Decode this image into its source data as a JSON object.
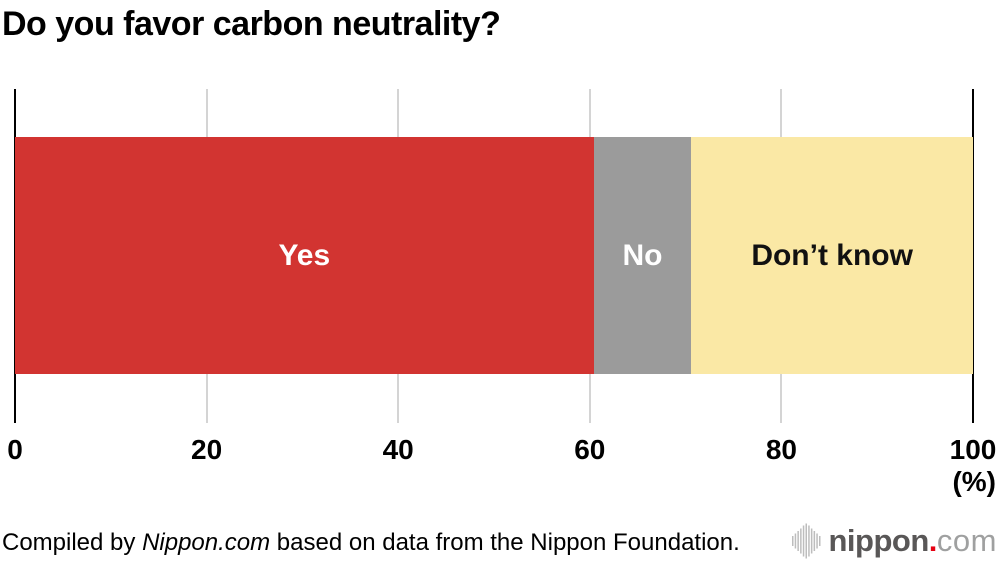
{
  "title": "Do you favor carbon neutrality?",
  "chart_data": {
    "type": "bar",
    "variant": "horizontal-stacked",
    "title": "Do you favor carbon neutrality?",
    "categories": [
      "Yes",
      "No",
      "Don’t know"
    ],
    "values": [
      60.4,
      10.2,
      29.4
    ],
    "segment_colors": [
      "#d23431",
      "#9b9b9b",
      "#fae8a5"
    ],
    "label_colors": [
      "#ffffff",
      "#ffffff",
      "#111111"
    ],
    "xlim": [
      0,
      100
    ],
    "x_tick_values": [
      0,
      20,
      40,
      60,
      80,
      100
    ],
    "x_tick_labels": [
      "0",
      "20",
      "40",
      "60",
      "80",
      "100"
    ],
    "unit_label": "(%)",
    "grid": true,
    "legend": false,
    "axis_color": "#000000",
    "gridline_color": "#d4d4d4"
  },
  "footer": {
    "credit_prefix": "Compiled by ",
    "credit_source": "Nippon.com",
    "credit_suffix": " based on data from the Nippon Foundation.",
    "logo": {
      "icon": "soundwave-bars-icon",
      "name": "nippon",
      "dot": ".",
      "tld": "com",
      "name_color": "#595757",
      "dot_color": "#e60012",
      "tld_color": "#9fa0a0",
      "bars_color": "#bdbdbd"
    }
  }
}
